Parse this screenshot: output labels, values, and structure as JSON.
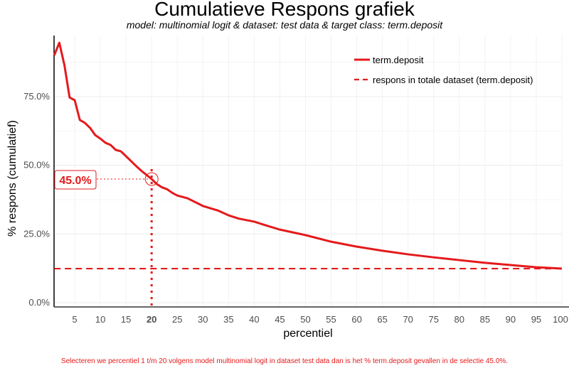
{
  "chart_data": {
    "type": "line",
    "title": "Cumulatieve Respons grafiek",
    "subtitle": "model: multinomial logit  &  dataset: test data  &  target class: term.deposit",
    "xlabel": "percentiel",
    "ylabel": "% respons (cumulatief)",
    "xlim": [
      1,
      100
    ],
    "ylim": [
      0,
      97.5
    ],
    "x_ticks": [
      5,
      10,
      15,
      20,
      25,
      30,
      35,
      40,
      45,
      50,
      55,
      60,
      65,
      70,
      75,
      80,
      85,
      90,
      95,
      100
    ],
    "highlight_x_tick": 20,
    "y_ticks": [
      0,
      25,
      50,
      75
    ],
    "y_tick_labels": [
      "0.0%",
      "25.0%",
      "50.0%",
      "75.0%"
    ],
    "grid": true,
    "legend_position": "top-right",
    "series": [
      {
        "name": "term.deposit",
        "color": "#e41a1c",
        "style": "solid",
        "x": [
          1,
          2,
          3,
          4,
          5,
          6,
          7,
          8,
          9,
          10,
          11,
          12,
          13,
          14,
          15,
          16,
          17,
          18,
          19,
          20,
          21,
          22,
          23,
          24,
          25,
          27,
          30,
          33,
          35,
          37,
          40,
          42,
          45,
          50,
          55,
          60,
          65,
          70,
          75,
          80,
          85,
          90,
          95,
          100
        ],
        "y": [
          90,
          94.6,
          86.4,
          74.7,
          73.7,
          66.5,
          65.4,
          63.6,
          61,
          59.7,
          58.2,
          57.4,
          55.6,
          55.1,
          53.3,
          51.5,
          49.7,
          48,
          46.5,
          45,
          43.2,
          42,
          41.3,
          40,
          39,
          38,
          35.2,
          33.5,
          31.8,
          30.6,
          29.5,
          28.3,
          26.6,
          24.6,
          22.2,
          20.4,
          18.9,
          17.6,
          16.5,
          15.5,
          14.5,
          13.7,
          12.9,
          12.4
        ]
      },
      {
        "name": "respons in totale dataset (term.deposit)",
        "color": "#e41a1c",
        "style": "dashed",
        "x": [
          1,
          100
        ],
        "y": [
          12.4,
          12.4
        ]
      }
    ],
    "annotation": {
      "x": 20,
      "y": 45.0,
      "label": "45.0%"
    }
  },
  "footnote": "Selecteren we percentiel 1 t/m 20 volgens model multinomial logit in dataset test data dan is het % term.deposit gevallen in de selectie 45.0%."
}
